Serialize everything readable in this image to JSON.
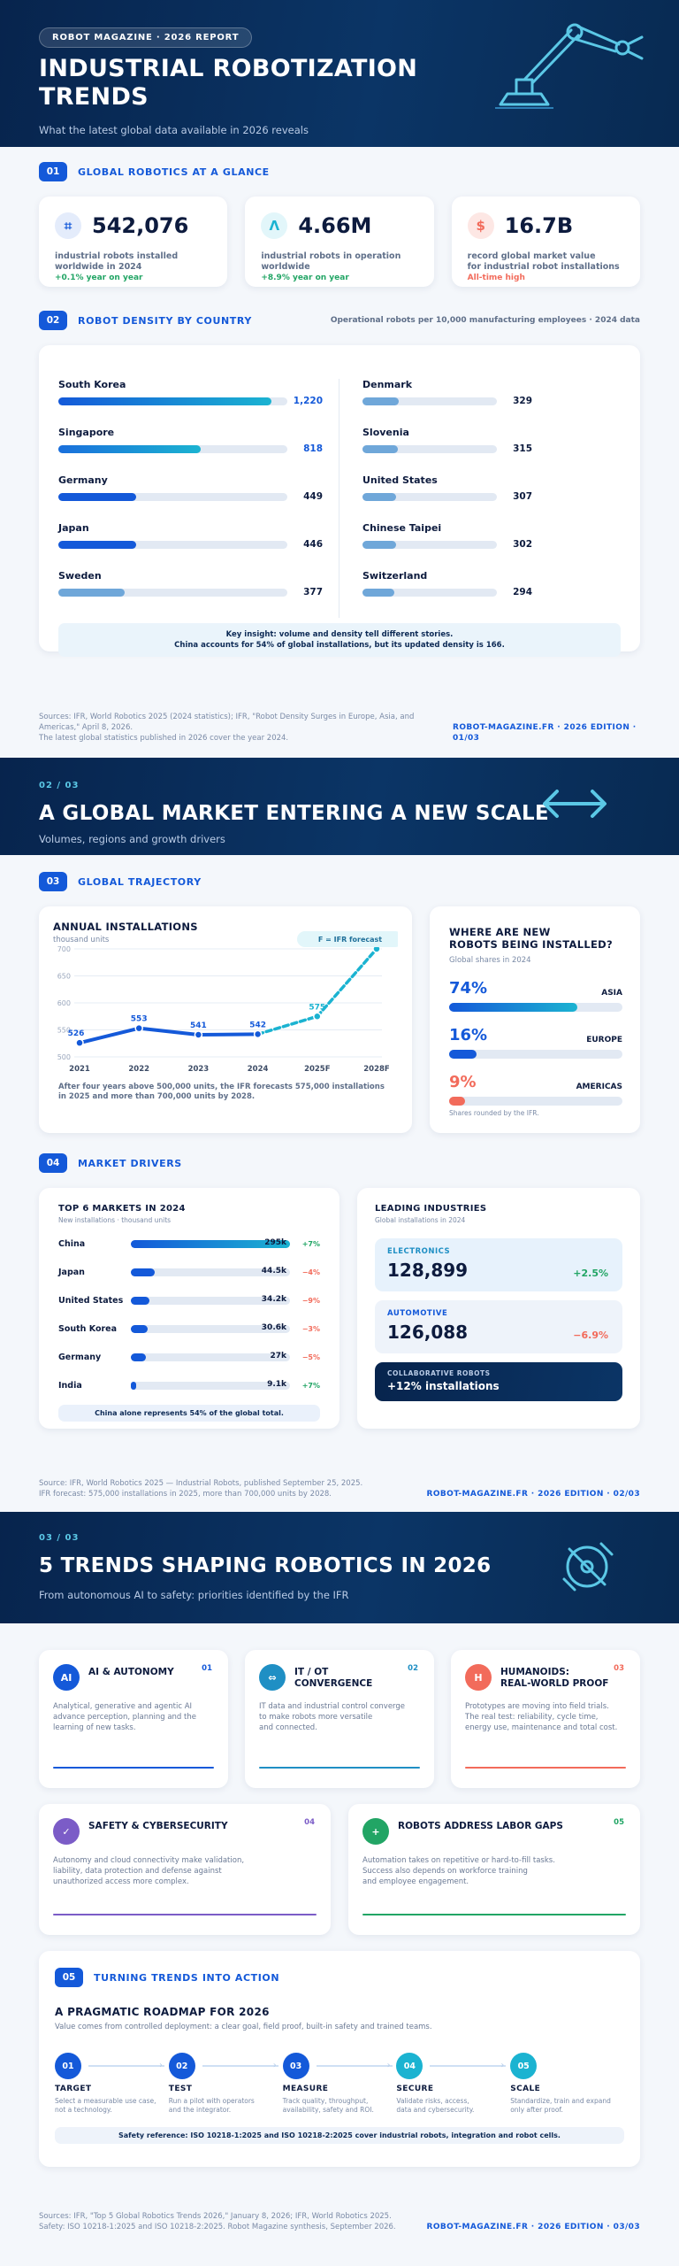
{
  "page1": {
    "badge": "ROBOT MAGAZINE · 2026 REPORT",
    "title_line1": "INDUSTRIAL ROBOTIZATION",
    "title_line2": "TRENDS",
    "subtitle": "What the latest global data available in 2026 reveals",
    "section1": {
      "num": "01",
      "title": "GLOBAL ROBOTICS AT A GLANCE"
    },
    "stats": [
      {
        "icon": "robot-arm-icon",
        "value": "542,076",
        "label_line1": "industrial robots installed",
        "label_line2": "worldwide in 2024",
        "delta": "+0.1% year on year",
        "accent": "#1459d9"
      },
      {
        "icon": "robot-arm-icon",
        "value": "4.66M",
        "label_line1": "industrial robots in operation",
        "label_line2": "worldwide",
        "delta": "+8.9% year on year",
        "accent": "#1bb3d1"
      },
      {
        "icon": "dollar-icon",
        "value": "16.7B",
        "label_line1": "record global market value",
        "label_line2": "for industrial robot installations",
        "delta": "All-time high",
        "accent": "#f26b5b"
      }
    ],
    "section2": {
      "num": "02",
      "title": "ROBOT DENSITY BY COUNTRY",
      "note": "Operational robots per 10,000 manufacturing employees · 2024 data"
    },
    "density_left": [
      {
        "country": "South Korea",
        "value": "1,220",
        "fraction": 0.93
      },
      {
        "country": "Singapore",
        "value": "818",
        "fraction": 0.62
      },
      {
        "country": "Germany",
        "value": "449",
        "fraction": 0.34
      },
      {
        "country": "Japan",
        "value": "446",
        "fraction": 0.34
      },
      {
        "country": "Sweden",
        "value": "377",
        "fraction": 0.29
      }
    ],
    "density_right": [
      {
        "country": "Denmark",
        "value": "329",
        "fraction": 0.27
      },
      {
        "country": "Slovenia",
        "value": "315",
        "fraction": 0.26
      },
      {
        "country": "United States",
        "value": "307",
        "fraction": 0.25
      },
      {
        "country": "Chinese Taipei",
        "value": "302",
        "fraction": 0.25
      },
      {
        "country": "Switzerland",
        "value": "294",
        "fraction": 0.24
      }
    ],
    "insight_line1": "Key insight: volume and density tell different stories.",
    "insight_line2": "China accounts for 54% of global installations, but its updated density is 166.",
    "sources_line1": "Sources: IFR, World Robotics 2025 (2024 statistics); IFR, \"Robot Density Surges in Europe, Asia, and Americas,\" April 8, 2026.",
    "sources_line2": "The latest global statistics published in 2026 cover the year 2024.",
    "brand": "ROBOT-MAGAZINE.FR · 2026 EDITION · 01/03"
  },
  "page2": {
    "kicker": "02 / 03",
    "title": "A GLOBAL MARKET ENTERING A NEW SCALE",
    "subtitle": "Volumes, regions and growth drivers",
    "section3": {
      "num": "03",
      "title": "GLOBAL TRAJECTORY"
    },
    "section4": {
      "num": "04",
      "title": "MARKET DRIVERS"
    },
    "install_card": {
      "title": "ANNUAL INSTALLATIONS",
      "unit": "thousand units",
      "forecast_tag": "F = IFR forecast",
      "note_line1": "After four years above 500,000 units, the IFR forecasts 575,000 installations",
      "note_line2": "in 2025 and more than 700,000 units by 2028."
    },
    "regions_card": {
      "title_line1": "WHERE ARE NEW",
      "title_line2": "ROBOTS BEING INSTALLED?",
      "sub": "Global shares in 2024",
      "footnote": "Shares rounded by the IFR.",
      "regions": [
        {
          "pct": "74%",
          "name": "ASIA",
          "share": 0.74,
          "color": "#1459d9"
        },
        {
          "pct": "16%",
          "name": "EUROPE",
          "share": 0.16,
          "color": "#1459d9"
        },
        {
          "pct": "9%",
          "name": "AMERICAS",
          "share": 0.09,
          "color": "#f26b5b"
        }
      ]
    },
    "markets_card": {
      "title": "TOP 6 MARKETS IN 2024",
      "sub": "New installations · thousand units",
      "footnote": "China alone represents 54% of the global total.",
      "rows": [
        {
          "name": "China",
          "value": "295k",
          "delta": "+7%",
          "fraction": 1.0,
          "up": true
        },
        {
          "name": "Japan",
          "value": "44.5k",
          "delta": "−4%",
          "fraction": 0.151,
          "up": false
        },
        {
          "name": "United States",
          "value": "34.2k",
          "delta": "−9%",
          "fraction": 0.116,
          "up": false
        },
        {
          "name": "South Korea",
          "value": "30.6k",
          "delta": "−3%",
          "fraction": 0.104,
          "up": false
        },
        {
          "name": "Germany",
          "value": "27k",
          "delta": "−5%",
          "fraction": 0.092,
          "up": false
        },
        {
          "name": "India",
          "value": "9.1k",
          "delta": "+7%",
          "fraction": 0.031,
          "up": true
        }
      ]
    },
    "industries_card": {
      "title": "LEADING INDUSTRIES",
      "sub": "Global installations in 2024",
      "electronics": {
        "label": "ELECTRONICS",
        "value": "128,899",
        "delta": "+2.5%"
      },
      "automotive": {
        "label": "AUTOMOTIVE",
        "value": "126,088",
        "delta": "−6.9%"
      },
      "collab": {
        "label": "COLLABORATIVE ROBOTS",
        "value": "+12% installations"
      }
    },
    "sources_line1": "Source: IFR, World Robotics 2025 — Industrial Robots, published September 25, 2025.",
    "sources_line2": "IFR forecast: 575,000 installations in 2025, more than 700,000 units by 2028.",
    "brand": "ROBOT-MAGAZINE.FR · 2026 EDITION · 02/03"
  },
  "chart_data": {
    "type": "line",
    "title": "ANNUAL INSTALLATIONS",
    "ylabel": "thousand units",
    "x": [
      "2021",
      "2022",
      "2023",
      "2024",
      "2025F",
      "2028F"
    ],
    "values": [
      526,
      553,
      541,
      542,
      575,
      700
    ],
    "labels": [
      "526",
      "553",
      "541",
      "542",
      "575",
      "700+"
    ],
    "forecast_from_index": 3,
    "ylim": [
      500,
      700
    ],
    "yticks": [
      "500",
      "550",
      "600",
      "650",
      "700"
    ],
    "grid": true
  },
  "page3": {
    "kicker": "03 / 03",
    "title": "5 TRENDS SHAPING ROBOTICS IN 2026",
    "subtitle": "From autonomous AI to safety: priorities identified by the IFR",
    "trends": [
      {
        "num": "01",
        "icon_text": "AI",
        "title_line1": "AI & AUTONOMY",
        "title_line2": "",
        "d1": "Analytical, generative and agentic AI",
        "d2": "advance perception, planning and the",
        "d3": "learning of new tasks.",
        "color": "#1459d9"
      },
      {
        "num": "02",
        "icon_text": "⇔",
        "title_line1": "IT / OT",
        "title_line2": "CONVERGENCE",
        "d1": "IT data and industrial control converge",
        "d2": "to make robots more versatile",
        "d3": "and connected.",
        "color": "#1f8fc4"
      },
      {
        "num": "03",
        "icon_text": "H",
        "title_line1": "HUMANOIDS:",
        "title_line2": "REAL-WORLD PROOF",
        "d1": "Prototypes are moving into field trials.",
        "d2": "The real test: reliability, cycle time,",
        "d3": "energy use, maintenance and total cost.",
        "color": "#f26b5b"
      },
      {
        "num": "04",
        "icon_text": "✓",
        "title_line1": "SAFETY & CYBERSECURITY",
        "title_line2": "",
        "d1": "Autonomy and cloud connectivity make validation,",
        "d2": "liability, data protection and defense against",
        "d3": "unauthorized access more complex.",
        "color": "#7b5cc7"
      },
      {
        "num": "05",
        "icon_text": "+",
        "title_line1": "ROBOTS ADDRESS LABOR GAPS",
        "title_line2": "",
        "d1": "Automation takes on repetitive or hard-to-fill tasks.",
        "d2": "Success also depends on workforce training",
        "d3": "and employee engagement.",
        "color": "#22a565"
      }
    ],
    "section5": {
      "num": "05",
      "title": "TURNING TRENDS INTO ACTION"
    },
    "roadmap_title": "A PRAGMATIC ROADMAP FOR 2026",
    "roadmap_sub": "Value comes from controlled deployment: a clear goal, field proof, built-in safety and trained teams.",
    "steps": [
      {
        "num": "01",
        "name": "TARGET",
        "d1": "Select a measurable use case,",
        "d2": "not a technology.",
        "color": "#1459d9"
      },
      {
        "num": "02",
        "name": "TEST",
        "d1": "Run a pilot with operators",
        "d2": "and the integrator.",
        "color": "#1459d9"
      },
      {
        "num": "03",
        "name": "MEASURE",
        "d1": "Track quality, throughput,",
        "d2": "availability, safety and ROI.",
        "color": "#1459d9"
      },
      {
        "num": "04",
        "name": "SECURE",
        "d1": "Validate risks, access,",
        "d2": "data and cybersecurity.",
        "color": "#1bb3d1"
      },
      {
        "num": "05",
        "name": "SCALE",
        "d1": "Standardize, train and expand",
        "d2": "only after proof.",
        "color": "#1bb3d1"
      }
    ],
    "safety_ref": "Safety reference: ISO 10218-1:2025 and ISO 10218-2:2025 cover industrial robots, integration and robot cells.",
    "sources_line1": "Sources: IFR, \"Top 5 Global Robotics Trends 2026,\" January 8, 2026; IFR, World Robotics 2025.",
    "sources_line2": "Safety: ISO 10218-1:2025 and ISO 10218-2:2025. Robot Magazine synthesis, September 2026.",
    "brand": "ROBOT-MAGAZINE.FR · 2026 EDITION · 03/03"
  }
}
